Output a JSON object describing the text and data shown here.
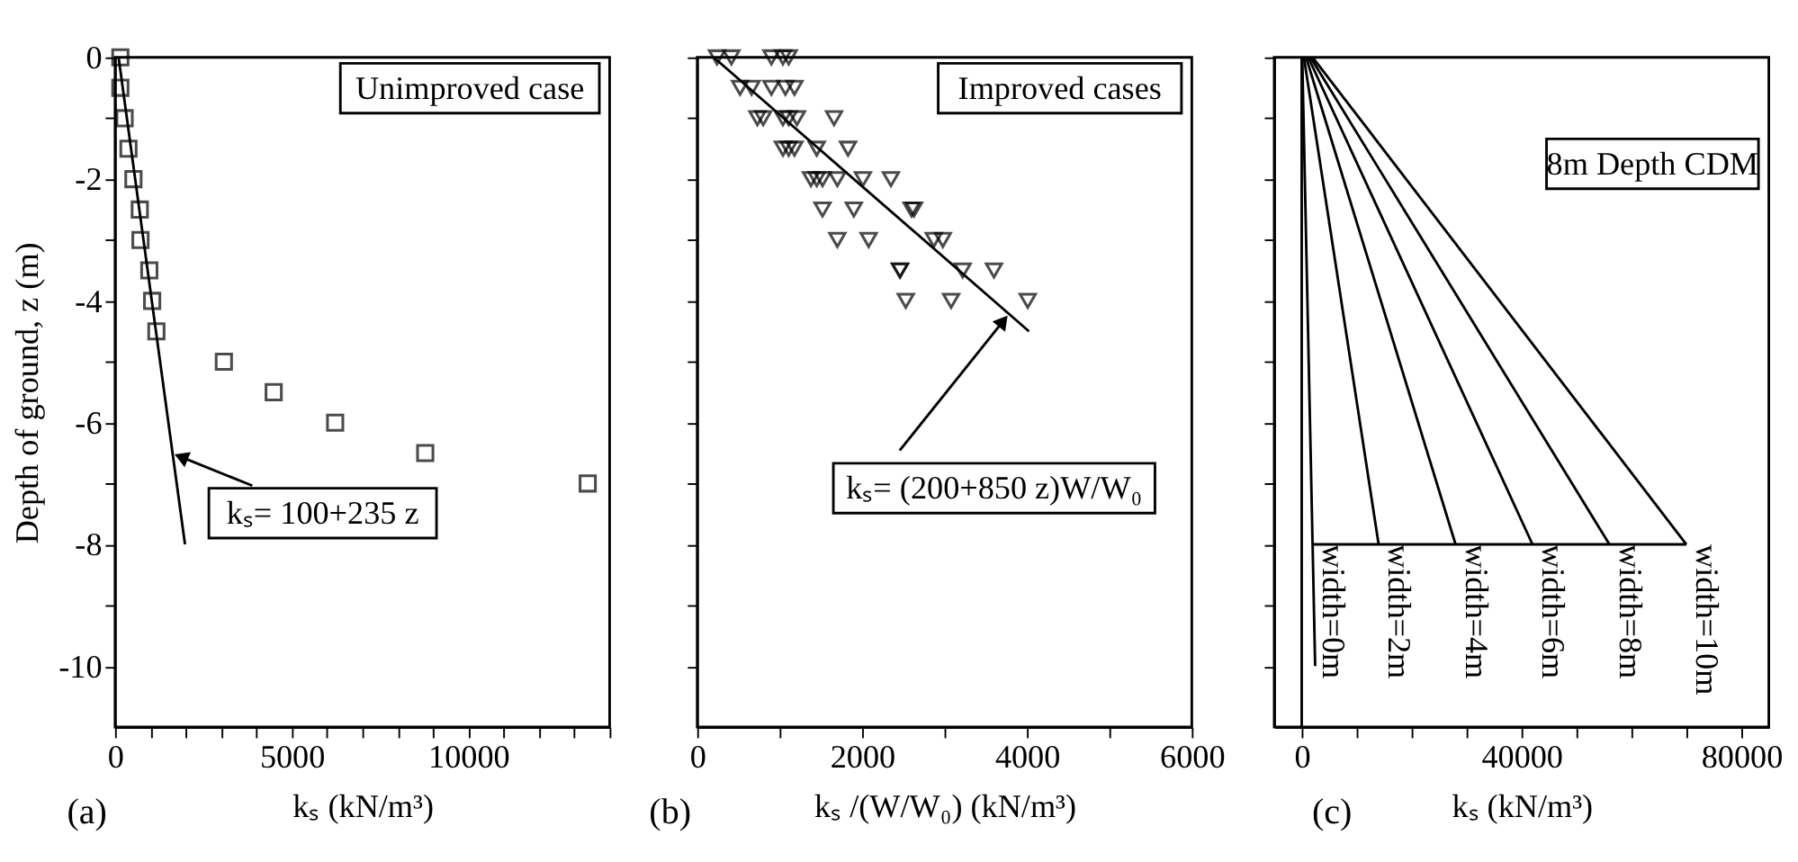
{
  "chart_data": [
    {
      "type": "scatter",
      "xlabel": "kₛ   (kN/m³)",
      "ylabel": "Depth of ground, z  (m)",
      "xlim": [
        0,
        14000
      ],
      "ylim": [
        -11,
        0
      ],
      "xticks": [
        0,
        {
          "value": 1000,
          "label": null
        },
        {
          "value": 2000,
          "label": null
        },
        {
          "value": 3000,
          "label": null
        },
        {
          "value": 4000,
          "label": null
        },
        5000,
        {
          "value": 6000,
          "label": null
        },
        {
          "value": 7000,
          "label": null
        },
        {
          "value": 8000,
          "label": null
        },
        {
          "value": 9000,
          "label": null
        },
        10000,
        {
          "value": 11000,
          "label": null
        },
        {
          "value": 12000,
          "label": null
        },
        {
          "value": 13000,
          "label": null
        },
        {
          "value": 14000,
          "label": null
        }
      ],
      "yticks": [
        0,
        {
          "value": -1,
          "label": null
        },
        -2,
        {
          "value": -3,
          "label": null
        },
        -4,
        {
          "value": -5,
          "label": null
        },
        -6,
        {
          "value": -7,
          "label": null
        },
        -8,
        {
          "value": -9,
          "label": null
        },
        -10
      ],
      "series": [
        {
          "type": "scatter",
          "marker": "square",
          "color": "#000000",
          "x": [
            150,
            150,
            270,
            380,
            520,
            700,
            720,
            970,
            1050,
            1170,
            3080,
            4490,
            6230,
            8780,
            13380
          ],
          "values": [
            0,
            -0.5,
            -1,
            -1.5,
            -2,
            -2.5,
            -3,
            -3.5,
            -4,
            -4.5,
            -5,
            -5.5,
            -6,
            -6.5,
            -7
          ]
        },
        {
          "type": "line",
          "marker": "none",
          "color": "#000000",
          "x": [
            100,
            1980
          ],
          "values": [
            0,
            -8
          ]
        }
      ],
      "annotations": [
        "(a)",
        "Unimproved case",
        {
          "text": "kₛ= 100+235 z",
          "x": 1600,
          "y": -6.5
        }
      ]
    },
    {
      "type": "scatter",
      "xlabel": "kₛ /(W/W₀)  (kN/m³)",
      "tick_labels": "x",
      "xlim": [
        0,
        6000
      ],
      "ylim": [
        -11,
        0
      ],
      "xticks": [
        0,
        {
          "value": 1000,
          "label": null
        },
        2000,
        {
          "value": 3000,
          "label": null
        },
        4000,
        {
          "value": 5000,
          "label": null
        },
        6000
      ],
      "yticks": [
        0,
        {
          "value": -1,
          "label": null
        },
        -2,
        {
          "value": -3,
          "label": null
        },
        -4,
        {
          "value": -5,
          "label": null
        },
        -6,
        {
          "value": -7,
          "label": null
        },
        -8,
        {
          "value": -9,
          "label": null
        },
        -10
      ],
      "series": [
        {
          "type": "scatter",
          "marker": "triangle",
          "color": "#000000",
          "x": [
            240,
            415,
            900,
            1040,
            1110,
            520,
            660,
            900,
            1070,
            1180,
            730,
            800,
            1040,
            1110,
            1210,
            1660,
            1040,
            1110,
            1180,
            1450,
            1830,
            1380,
            1450,
            1520,
            1700,
            2010,
            2350,
            1520,
            1900,
            2600,
            2630,
            1700,
            2080,
            2870,
            2980,
            2460,
            2460,
            3220,
            3600,
            2530,
            3080,
            4010
          ],
          "values": [
            0,
            0,
            0,
            0,
            0,
            -0.5,
            -0.5,
            -0.5,
            -0.5,
            -0.5,
            -1,
            -1,
            -1,
            -1,
            -1,
            -1,
            -1.5,
            -1.5,
            -1.5,
            -1.5,
            -1.5,
            -2,
            -2,
            -2,
            -2,
            -2,
            -2,
            -2.5,
            -2.5,
            -2.5,
            -2.5,
            -3,
            -3,
            -3,
            -3,
            -3.5,
            -3.5,
            -3.5,
            -3.5,
            -4,
            -4,
            -4
          ]
        },
        {
          "type": "line",
          "marker": "none",
          "color": "#000000",
          "x": [
            200,
            4025
          ],
          "values": [
            0,
            -4.5
          ]
        }
      ],
      "annotations": [
        "(b)",
        "Improved cases",
        {
          "text": "kₛ= (200+850 z)W/W₀",
          "x": 3790,
          "y": -4.2
        }
      ]
    },
    {
      "type": "line",
      "xlabel": "kₛ (kN/m³)",
      "tick_labels": "x",
      "xlim": [
        -5000,
        85000
      ],
      "ylim": [
        -11,
        0
      ],
      "xticks": [
        0,
        {
          "value": 10000,
          "label": null
        },
        {
          "value": 20000,
          "label": null
        },
        {
          "value": 30000,
          "label": null
        },
        40000,
        {
          "value": 50000,
          "label": null
        },
        {
          "value": 60000,
          "label": null
        },
        {
          "value": 70000,
          "label": null
        },
        80000
      ],
      "yticks": [
        0,
        {
          "value": -1,
          "label": null
        },
        -2,
        {
          "value": -3,
          "label": null
        },
        -4,
        {
          "value": -5,
          "label": null
        },
        -6,
        {
          "value": -7,
          "label": null
        },
        -8,
        {
          "value": -9,
          "label": null
        },
        -10
      ],
      "series": [
        {
          "name": "width=0m",
          "color": "#000000",
          "x": [
            100,
            1980,
            2450
          ],
          "values": [
            0,
            -8,
            -10
          ]
        },
        {
          "name": "width=2m",
          "color": "#000000",
          "x": [
            400,
            14000
          ],
          "values": [
            0,
            -8
          ]
        },
        {
          "name": "width=4m",
          "color": "#000000",
          "x": [
            800,
            28000
          ],
          "values": [
            0,
            -8
          ]
        },
        {
          "name": "width=6m",
          "color": "#000000",
          "x": [
            1200,
            42000
          ],
          "values": [
            0,
            -8
          ]
        },
        {
          "name": "width=8m",
          "color": "#000000",
          "x": [
            1600,
            56000
          ],
          "values": [
            0,
            -8
          ]
        },
        {
          "name": "width=10m",
          "color": "#000000",
          "x": [
            2000,
            70000
          ],
          "values": [
            0,
            -8
          ]
        },
        {
          "color": "#000000",
          "x": [
            1980,
            70000
          ],
          "values": [
            -8,
            -8
          ]
        },
        {
          "color": "#000000",
          "x": [
            0,
            0
          ],
          "values": [
            0,
            -11
          ]
        }
      ],
      "annotations": [
        "(c)",
        "8m Depth CDM"
      ]
    }
  ]
}
